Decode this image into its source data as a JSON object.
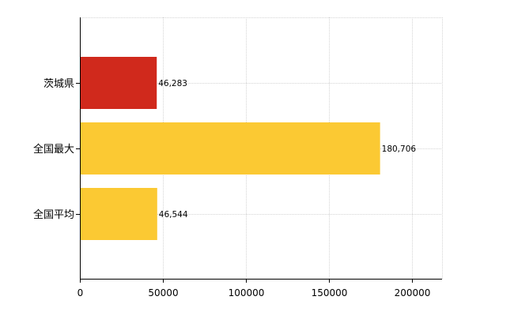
{
  "chart_data": {
    "type": "bar",
    "orientation": "horizontal",
    "title": "",
    "xlabel": "",
    "ylabel": "",
    "categories": [
      "茨城県",
      "全国最大",
      "全国平均"
    ],
    "values": [
      46283,
      180706,
      46544
    ],
    "value_labels": [
      "46,283",
      "180,706",
      "46,544"
    ],
    "colors": [
      "#d0291c",
      "#fbc933",
      "#fbc933"
    ],
    "xlim": [
      0,
      218000
    ],
    "xticks": [
      0,
      50000,
      100000,
      150000,
      200000
    ],
    "xtick_labels": [
      "0",
      "50000",
      "100000",
      "150000",
      "200000"
    ],
    "grid": true,
    "legend": "none"
  }
}
